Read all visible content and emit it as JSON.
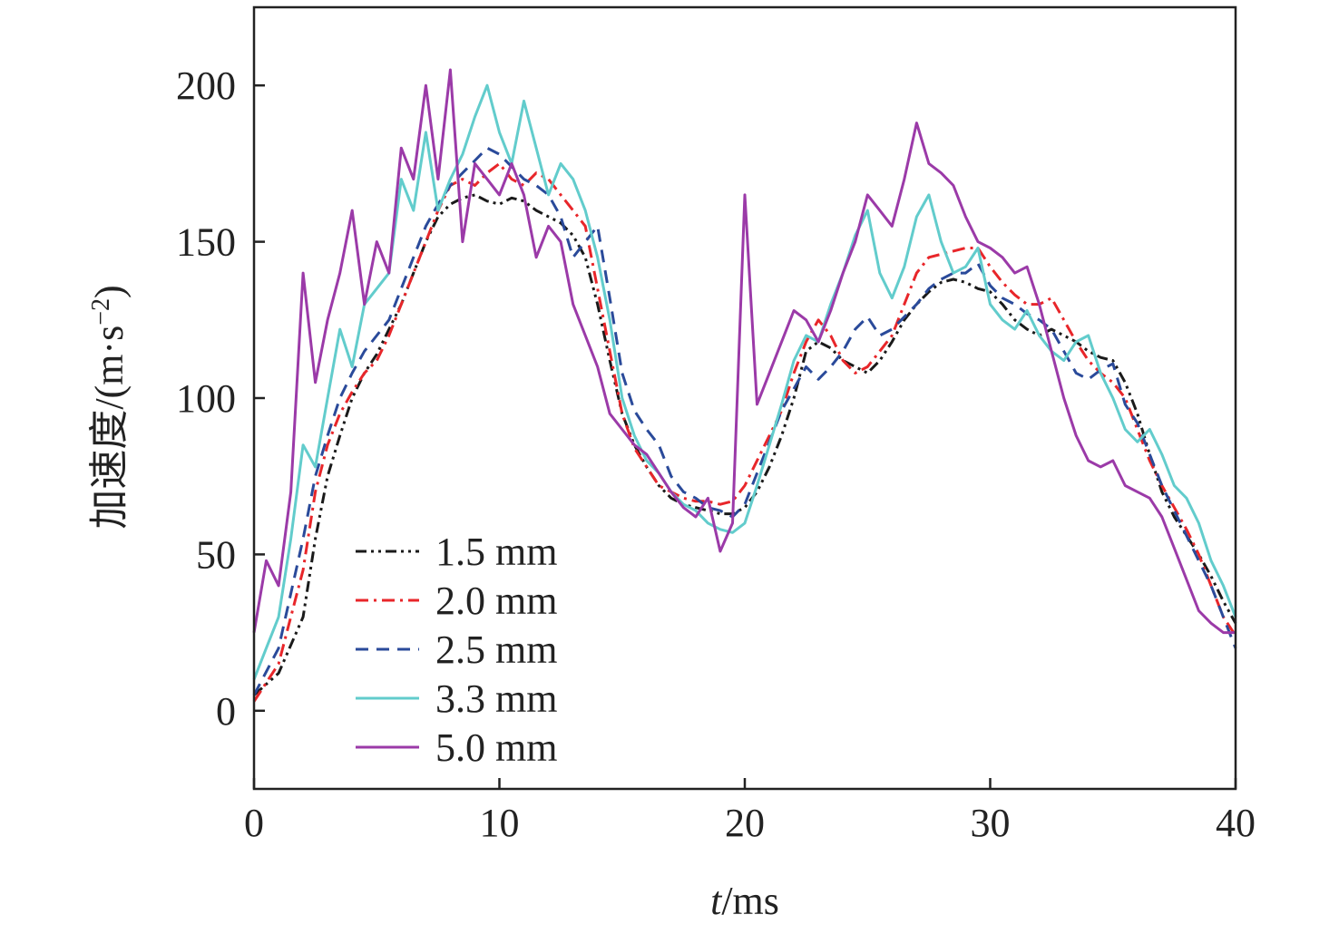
{
  "chart_data": {
    "type": "line",
    "xlabel_italic": "t",
    "xlabel_rest": "/ms",
    "ylabel_text": "加速度/(m·s",
    "ylabel_sup": "−2",
    "ylabel_close": ")",
    "xlim": [
      0,
      40
    ],
    "ylim": [
      -25,
      225
    ],
    "xticks": [
      0,
      10,
      20,
      30,
      40
    ],
    "xtick_labels": [
      "0",
      "10",
      "20",
      "30",
      "40"
    ],
    "yticks": [
      0,
      50,
      100,
      150,
      200
    ],
    "ytick_labels": [
      "0",
      "50",
      "100",
      "150",
      "200"
    ],
    "grid": false,
    "legend_position": "bottom-left",
    "series": [
      {
        "name": "1.5 mm",
        "color": "#1a1a1a",
        "dash": "dash-dot-dot",
        "x": [
          0,
          1,
          2,
          2.5,
          3,
          3.5,
          4,
          4.5,
          5,
          5.5,
          6,
          6.5,
          7,
          7.5,
          8,
          8.5,
          9,
          9.5,
          10,
          10.5,
          11,
          11.5,
          12,
          12.5,
          13,
          13.5,
          14,
          14.5,
          15,
          15.5,
          16,
          16.5,
          17,
          17.5,
          18,
          18.5,
          19,
          19.5,
          20,
          20.5,
          21,
          21.5,
          22,
          22.5,
          23,
          23.5,
          24,
          24.5,
          25,
          25.5,
          26,
          26.5,
          27,
          27.5,
          28,
          28.5,
          29,
          29.5,
          30,
          30.5,
          31,
          31.5,
          32,
          32.5,
          33,
          33.5,
          34,
          34.5,
          35,
          35.5,
          36,
          36.5,
          37,
          37.5,
          38,
          38.5,
          39,
          39.5,
          40
        ],
        "y": [
          5,
          12,
          30,
          55,
          75,
          88,
          100,
          108,
          114,
          122,
          130,
          140,
          150,
          158,
          162,
          164,
          165,
          163,
          162,
          164,
          163,
          160,
          158,
          156,
          152,
          145,
          130,
          112,
          95,
          85,
          78,
          72,
          68,
          66,
          65,
          64,
          63,
          63,
          65,
          70,
          78,
          88,
          100,
          115,
          118,
          116,
          112,
          110,
          108,
          112,
          118,
          125,
          130,
          134,
          137,
          138,
          137,
          135,
          134,
          130,
          125,
          122,
          120,
          122,
          120,
          118,
          115,
          113,
          112,
          105,
          95,
          82,
          70,
          62,
          56,
          50,
          43,
          35,
          28
        ]
      },
      {
        "name": "2.0 mm",
        "color": "#e8262a",
        "dash": "dash-dot",
        "x": [
          0,
          1,
          2,
          2.5,
          3,
          3.5,
          4,
          4.5,
          5,
          5.5,
          6,
          6.5,
          7,
          7.5,
          8,
          8.5,
          9,
          9.5,
          10,
          10.5,
          11,
          11.5,
          12,
          12.5,
          13,
          13.5,
          14,
          14.5,
          15,
          15.5,
          16,
          16.5,
          17,
          17.5,
          18,
          18.5,
          19,
          19.5,
          20,
          20.5,
          21,
          21.5,
          22,
          22.5,
          23,
          23.5,
          24,
          24.5,
          25,
          25.5,
          26,
          26.5,
          27,
          27.5,
          28,
          28.5,
          29,
          29.5,
          30,
          30.5,
          31,
          31.5,
          32,
          32.5,
          33,
          33.5,
          34,
          34.5,
          35,
          35.5,
          36,
          36.5,
          37,
          37.5,
          38,
          38.5,
          39,
          39.5,
          40
        ],
        "y": [
          3,
          15,
          45,
          70,
          85,
          95,
          102,
          108,
          112,
          120,
          130,
          140,
          150,
          160,
          168,
          170,
          168,
          172,
          175,
          170,
          168,
          172,
          170,
          165,
          160,
          155,
          135,
          115,
          95,
          84,
          78,
          72,
          70,
          68,
          67,
          67,
          66,
          67,
          72,
          80,
          88,
          96,
          108,
          118,
          125,
          120,
          112,
          108,
          110,
          115,
          120,
          130,
          140,
          145,
          146,
          147,
          148,
          148,
          142,
          137,
          133,
          130,
          130,
          132,
          125,
          118,
          112,
          108,
          105,
          100,
          90,
          80,
          72,
          65,
          58,
          50,
          40,
          30,
          24
        ]
      },
      {
        "name": "2.5 mm",
        "color": "#2a4a9a",
        "dash": "dashed",
        "x": [
          0,
          1,
          2,
          2.5,
          3,
          3.5,
          4,
          4.5,
          5,
          5.5,
          6,
          6.5,
          7,
          7.5,
          8,
          8.5,
          9,
          9.5,
          10,
          10.5,
          11,
          11.5,
          12,
          12.5,
          13,
          13.5,
          14,
          14.5,
          15,
          15.5,
          16,
          16.5,
          17,
          17.5,
          18,
          18.5,
          19,
          19.5,
          20,
          20.5,
          21,
          21.5,
          22,
          22.5,
          23,
          23.5,
          24,
          24.5,
          25,
          25.5,
          26,
          26.5,
          27,
          27.5,
          28,
          28.5,
          29,
          29.5,
          30,
          30.5,
          31,
          31.5,
          32,
          32.5,
          33,
          33.5,
          34,
          34.5,
          35,
          35.5,
          36,
          36.5,
          37,
          37.5,
          38,
          38.5,
          39,
          39.5,
          40
        ],
        "y": [
          5,
          20,
          55,
          75,
          88,
          100,
          108,
          115,
          120,
          125,
          135,
          145,
          155,
          162,
          168,
          172,
          176,
          180,
          178,
          174,
          170,
          168,
          165,
          158,
          145,
          150,
          155,
          132,
          108,
          96,
          90,
          85,
          75,
          70,
          68,
          65,
          64,
          62,
          66,
          76,
          86,
          96,
          103,
          110,
          106,
          110,
          115,
          122,
          126,
          120,
          122,
          126,
          130,
          135,
          138,
          140,
          140,
          143,
          136,
          132,
          130,
          127,
          125,
          122,
          115,
          108,
          106,
          109,
          111,
          98,
          92,
          82,
          72,
          64,
          56,
          48,
          40,
          30,
          20
        ]
      },
      {
        "name": "3.3 mm",
        "color": "#62cccc",
        "dash": "solid",
        "x": [
          0,
          0.5,
          1,
          1.5,
          2,
          2.5,
          3,
          3.5,
          4,
          4.5,
          5,
          5.5,
          6,
          6.5,
          7,
          7.5,
          8,
          8.5,
          9,
          9.5,
          10,
          10.5,
          11,
          11.5,
          12,
          12.5,
          13,
          13.5,
          14,
          14.5,
          15,
          15.5,
          16,
          16.5,
          17,
          17.5,
          18,
          18.5,
          19,
          19.5,
          20,
          20.5,
          21,
          21.5,
          22,
          22.5,
          23,
          23.5,
          24,
          24.5,
          25,
          25.5,
          26,
          26.5,
          27,
          27.5,
          28,
          28.5,
          29,
          29.5,
          30,
          30.5,
          31,
          31.5,
          32,
          32.5,
          33,
          33.5,
          34,
          34.5,
          35,
          35.5,
          36,
          36.5,
          37,
          37.5,
          38,
          38.5,
          39,
          39.5,
          40
        ],
        "y": [
          10,
          20,
          30,
          55,
          85,
          78,
          100,
          122,
          110,
          130,
          135,
          140,
          170,
          160,
          185,
          160,
          170,
          178,
          190,
          200,
          185,
          175,
          195,
          180,
          165,
          175,
          170,
          160,
          145,
          125,
          100,
          88,
          80,
          76,
          70,
          66,
          64,
          60,
          58,
          57,
          60,
          72,
          85,
          98,
          112,
          120,
          118,
          130,
          140,
          152,
          160,
          140,
          132,
          142,
          158,
          165,
          150,
          140,
          142,
          148,
          130,
          125,
          122,
          128,
          120,
          115,
          112,
          118,
          120,
          108,
          100,
          90,
          86,
          90,
          82,
          72,
          68,
          60,
          48,
          40,
          30
        ]
      },
      {
        "name": "5.0 mm",
        "color": "#9b3aa8",
        "dash": "solid",
        "x": [
          0,
          0.5,
          1,
          1.5,
          2,
          2.5,
          3,
          3.5,
          4,
          4.5,
          5,
          5.5,
          6,
          6.5,
          7,
          7.5,
          8,
          8.5,
          9,
          9.5,
          10,
          10.5,
          11,
          11.5,
          12,
          12.5,
          13,
          13.5,
          14,
          14.5,
          15,
          15.5,
          16,
          16.5,
          17,
          17.5,
          18,
          18.5,
          19,
          19.5,
          20,
          20.5,
          21,
          21.5,
          22,
          22.5,
          23,
          23.5,
          24,
          24.5,
          25,
          25.5,
          26,
          26.5,
          27,
          27.5,
          28,
          28.5,
          29,
          29.5,
          30,
          30.5,
          31,
          31.5,
          32,
          32.5,
          33,
          33.5,
          34,
          34.5,
          35,
          35.5,
          36,
          36.5,
          37,
          37.5,
          38,
          38.5,
          39,
          39.5,
          40
        ],
        "y": [
          25,
          48,
          40,
          70,
          140,
          105,
          125,
          140,
          160,
          130,
          150,
          140,
          180,
          170,
          200,
          170,
          205,
          150,
          175,
          170,
          165,
          175,
          165,
          145,
          155,
          150,
          130,
          120,
          110,
          95,
          90,
          85,
          82,
          76,
          70,
          65,
          62,
          68,
          51,
          60,
          165,
          98,
          108,
          118,
          128,
          125,
          118,
          128,
          140,
          150,
          165,
          160,
          155,
          170,
          188,
          175,
          172,
          168,
          158,
          150,
          148,
          145,
          140,
          142,
          130,
          115,
          100,
          88,
          80,
          78,
          80,
          72,
          70,
          68,
          62,
          52,
          42,
          32,
          28,
          25,
          25
        ]
      }
    ]
  }
}
